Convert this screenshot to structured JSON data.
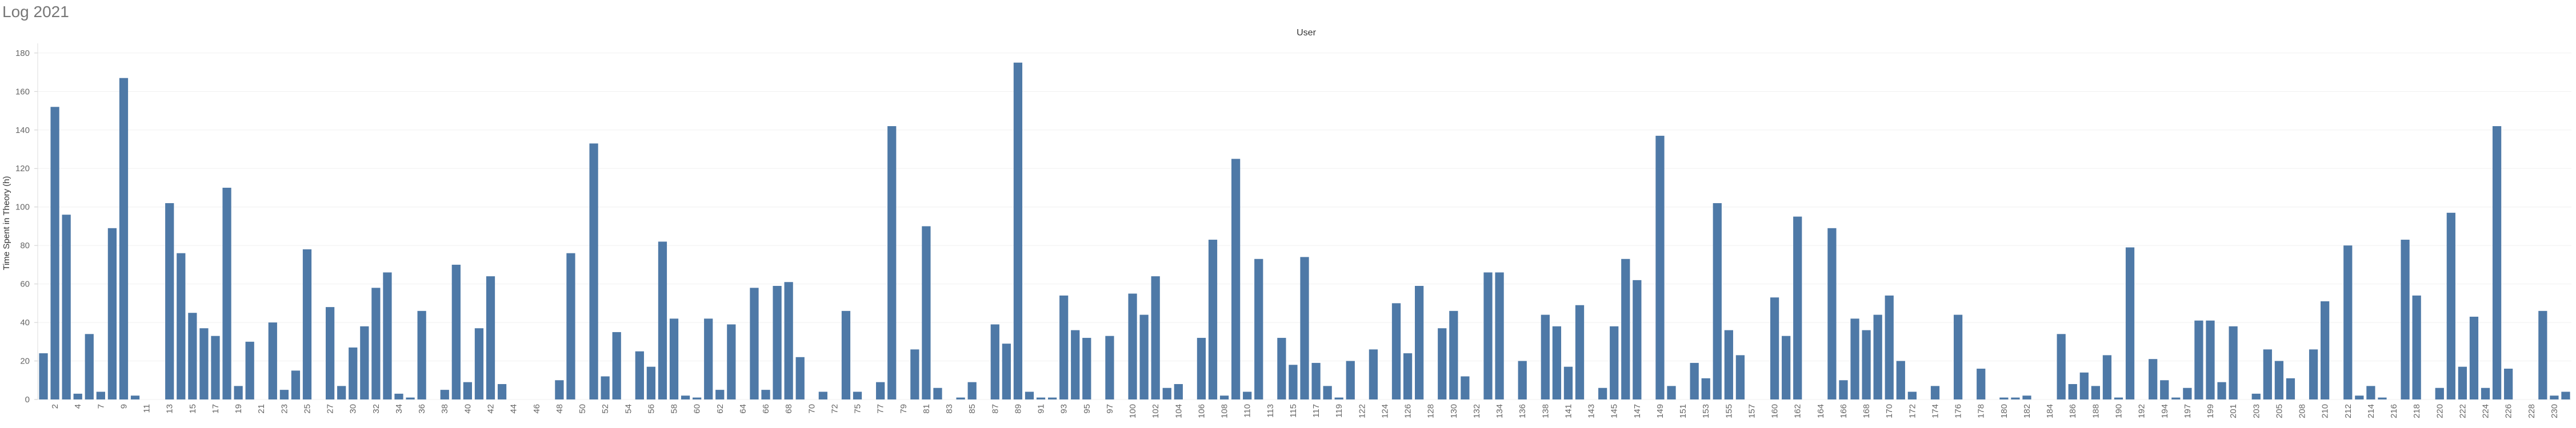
{
  "chart_data": {
    "type": "bar",
    "title": "Log 2021",
    "header": "User",
    "y_label": "Time Spent in Theory (h)",
    "categories": [
      null,
      "2",
      null,
      "4",
      null,
      "7",
      null,
      "9",
      null,
      "11",
      null,
      "13",
      null,
      "15",
      null,
      "17",
      null,
      "19",
      null,
      "21",
      null,
      "23",
      null,
      "25",
      null,
      "27",
      null,
      "30",
      null,
      "32",
      null,
      "34",
      null,
      "36",
      null,
      "38",
      null,
      "40",
      null,
      "42",
      null,
      "44",
      null,
      "46",
      null,
      "48",
      null,
      "50",
      null,
      "52",
      null,
      "54",
      null,
      "56",
      null,
      "58",
      null,
      "60",
      null,
      "62",
      null,
      "64",
      null,
      "66",
      null,
      "68",
      null,
      "70",
      null,
      "72",
      null,
      "75",
      null,
      "77",
      null,
      "79",
      null,
      "81",
      null,
      "83",
      null,
      "85",
      null,
      "87",
      null,
      "89",
      null,
      "91",
      null,
      "93",
      null,
      "95",
      null,
      "97",
      null,
      "100",
      null,
      "102",
      null,
      "104",
      null,
      "106",
      null,
      "108",
      null,
      "110",
      null,
      "113",
      null,
      "115",
      null,
      "117",
      null,
      "119",
      null,
      "122",
      null,
      "124",
      null,
      "126",
      null,
      "128",
      null,
      "130",
      null,
      "132",
      null,
      "134",
      null,
      "136",
      null,
      "138",
      null,
      "141",
      null,
      "143",
      null,
      "145",
      null,
      "147",
      null,
      "149",
      null,
      "151",
      null,
      "153",
      null,
      "155",
      null,
      "157",
      null,
      "160",
      null,
      "162",
      null,
      "164",
      null,
      "166",
      null,
      "168",
      null,
      "170",
      null,
      "172",
      null,
      "174",
      null,
      "176",
      null,
      "178",
      null,
      "180",
      null,
      "182",
      null,
      "184",
      null,
      "186",
      null,
      "188",
      null,
      "190",
      null,
      "192",
      null,
      "194",
      null,
      "197",
      null,
      "199",
      null,
      "201",
      null,
      "203",
      null,
      "205",
      null,
      "208",
      null,
      "210",
      null,
      "212",
      null,
      "214",
      null,
      "216",
      null,
      "218",
      null,
      "220",
      null,
      "222",
      null,
      "224",
      null,
      "226",
      null,
      "228",
      null,
      "230",
      null
    ],
    "values": [
      24,
      152,
      96,
      3,
      34,
      4,
      89,
      167,
      2,
      0,
      0,
      102,
      76,
      45,
      37,
      33,
      110,
      7,
      30,
      0,
      40,
      5,
      15,
      78,
      0,
      48,
      7,
      27,
      38,
      58,
      66,
      3,
      1,
      46,
      0,
      5,
      70,
      9,
      37,
      64,
      8,
      0,
      0,
      0,
      0,
      10,
      76,
      0,
      133,
      12,
      35,
      0,
      25,
      17,
      82,
      42,
      2,
      1,
      42,
      5,
      39,
      0,
      58,
      5,
      59,
      61,
      22,
      0,
      4,
      0,
      46,
      4,
      0,
      9,
      142,
      0,
      26,
      90,
      6,
      0,
      1,
      9,
      0,
      39,
      29,
      175,
      4,
      1,
      1,
      54,
      36,
      32,
      0,
      33,
      0,
      55,
      44,
      64,
      6,
      8,
      0,
      32,
      83,
      2,
      125,
      4,
      73,
      0,
      32,
      18,
      74,
      19,
      7,
      1,
      20,
      0,
      26,
      0,
      50,
      24,
      59,
      0,
      37,
      46,
      12,
      0,
      66,
      66,
      0,
      20,
      0,
      44,
      38,
      17,
      49,
      0,
      6,
      38,
      73,
      62,
      0,
      137,
      7,
      0,
      19,
      11,
      102,
      36,
      23,
      0,
      0,
      53,
      33,
      95,
      0,
      0,
      89,
      10,
      42,
      36,
      44,
      54,
      20,
      4,
      0,
      7,
      0,
      44,
      0,
      16,
      0,
      1,
      1,
      2,
      0,
      0,
      34,
      8,
      14,
      7,
      23,
      1,
      79,
      0,
      21,
      10,
      1,
      6,
      41,
      41,
      9,
      38,
      0,
      3,
      26,
      20,
      11,
      0,
      26,
      51,
      0,
      80,
      2,
      7,
      1,
      0,
      83,
      54,
      0,
      6,
      97,
      17,
      43,
      6,
      142,
      16,
      0,
      0,
      46,
      2,
      4
    ],
    "color": "#4e79a7",
    "ylim": [
      0,
      185
    ],
    "yticks": [
      0,
      20,
      40,
      60,
      80,
      100,
      120,
      140,
      160,
      180
    ],
    "grid": true
  }
}
